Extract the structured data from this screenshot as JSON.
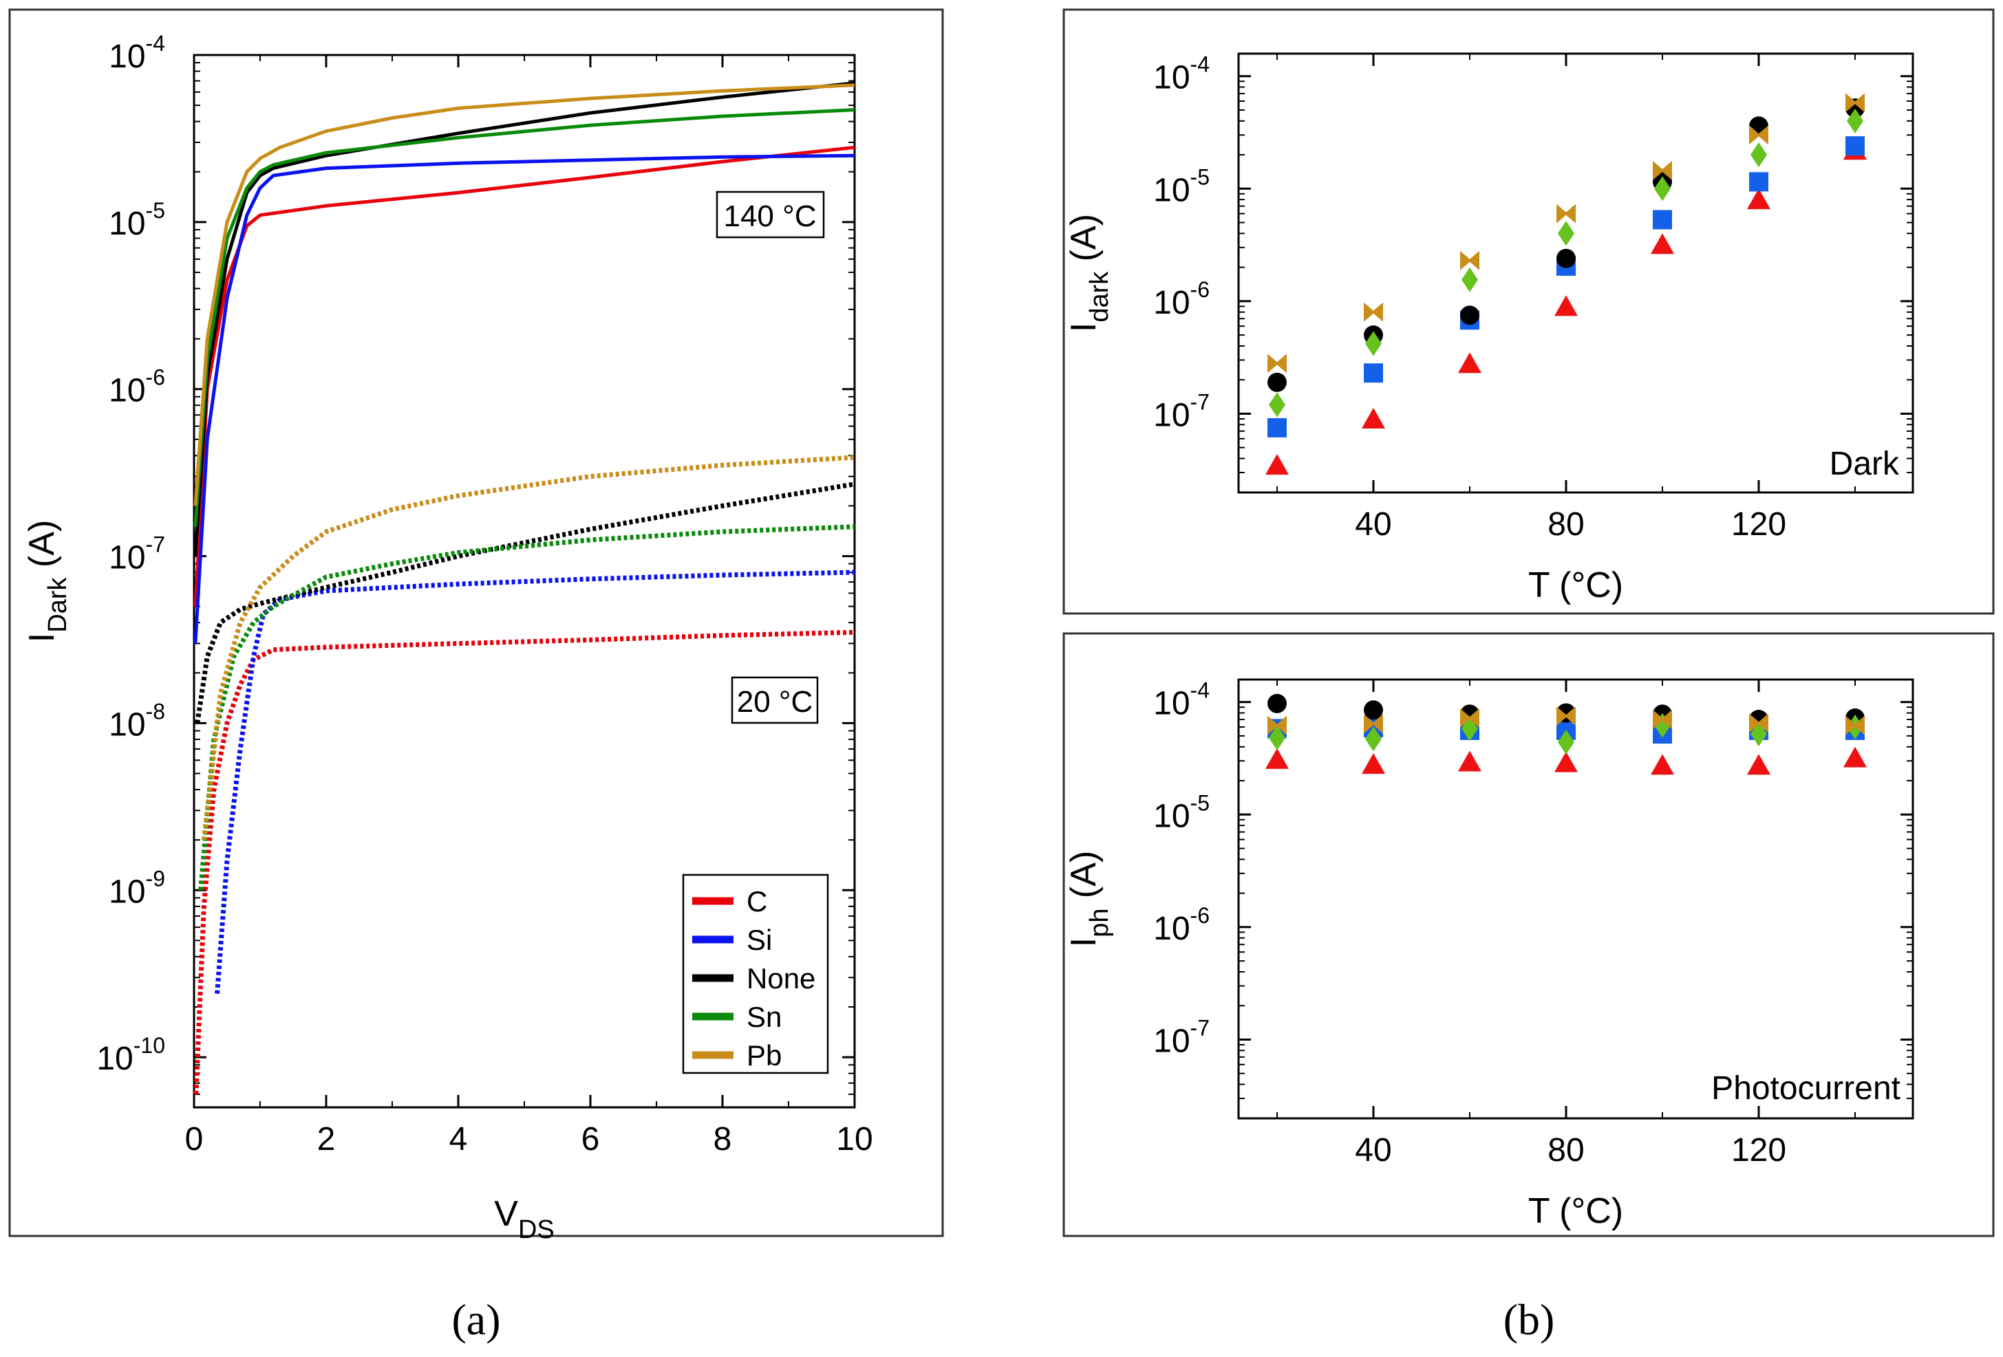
{
  "colors": {
    "C": "#e8000b",
    "Si": "#0a12f0",
    "None": "#000000",
    "Sn": "#0a8a0a",
    "Pb": "#c98d1a",
    "mC": "#ee1111",
    "mSi": "#1560e8",
    "mNone": "#000000",
    "mSn": "#66c21c",
    "mPb": "#c98d1a"
  },
  "captions": {
    "a": "(a)",
    "b": "(b)"
  },
  "chart_data": [
    {
      "type": "line",
      "panel": "a",
      "xlabel_main": "V",
      "xlabel_sub": "DS",
      "ylabel_main": "I",
      "ylabel_sub": "Dark",
      "ylabel_unit": " (A)",
      "xlim": [
        0,
        10
      ],
      "ylim_log10": [
        -10.3,
        -4
      ],
      "xticks": [
        "0",
        "2",
        "4",
        "6",
        "8",
        "10"
      ],
      "yticks": [
        {
          "exp": -4,
          "base": "10",
          "sup": "-4"
        },
        {
          "exp": -5,
          "base": "10",
          "sup": "-5"
        },
        {
          "exp": -6,
          "base": "10",
          "sup": "-6"
        },
        {
          "exp": -7,
          "base": "10",
          "sup": "-7"
        },
        {
          "exp": -8,
          "base": "10",
          "sup": "-8"
        },
        {
          "exp": -9,
          "base": "10",
          "sup": "-9"
        },
        {
          "exp": -10,
          "base": "10",
          "sup": "-10"
        }
      ],
      "annotations": {
        "hot": "140 °C",
        "cold": "20 °C"
      },
      "legend": [
        "C",
        "Si",
        "None",
        "Sn",
        "Pb"
      ],
      "legend_position": "bottom-right",
      "series": [
        {
          "name": "C",
          "temp": "140 °C",
          "style": "solid",
          "x": [
            0.02,
            0.2,
            0.5,
            0.8,
            1.0,
            2,
            4,
            6,
            8,
            10
          ],
          "y": [
            5e-08,
            1e-06,
            4.5e-06,
            9.5e-06,
            1.1e-05,
            1.25e-05,
            1.5e-05,
            1.85e-05,
            2.3e-05,
            2.8e-05
          ]
        },
        {
          "name": "Si",
          "temp": "140 °C",
          "style": "solid",
          "x": [
            0.02,
            0.2,
            0.5,
            0.8,
            1.0,
            1.2,
            2,
            4,
            6,
            8,
            10
          ],
          "y": [
            3e-08,
            5e-07,
            3.5e-06,
            1.1e-05,
            1.6e-05,
            1.9e-05,
            2.1e-05,
            2.25e-05,
            2.35e-05,
            2.45e-05,
            2.5e-05
          ]
        },
        {
          "name": "None",
          "temp": "140 °C",
          "style": "solid",
          "x": [
            0.02,
            0.2,
            0.5,
            0.8,
            1.0,
            1.2,
            2,
            4,
            6,
            8,
            10
          ],
          "y": [
            1e-07,
            1.2e-06,
            6e-06,
            1.5e-05,
            1.9e-05,
            2.1e-05,
            2.5e-05,
            3.4e-05,
            4.5e-05,
            5.6e-05,
            6.8e-05
          ]
        },
        {
          "name": "Sn",
          "temp": "140 °C",
          "style": "solid",
          "x": [
            0.02,
            0.2,
            0.5,
            0.8,
            1.0,
            1.2,
            2,
            4,
            6,
            8,
            10
          ],
          "y": [
            1.5e-07,
            1.5e-06,
            8e-06,
            1.6e-05,
            2e-05,
            2.2e-05,
            2.6e-05,
            3.2e-05,
            3.8e-05,
            4.3e-05,
            4.7e-05
          ]
        },
        {
          "name": "Pb",
          "temp": "140 °C",
          "style": "solid",
          "x": [
            0.02,
            0.2,
            0.5,
            0.8,
            1.0,
            1.3,
            2,
            3,
            4,
            6,
            8,
            10
          ],
          "y": [
            2e-07,
            2e-06,
            1e-05,
            2e-05,
            2.4e-05,
            2.8e-05,
            3.5e-05,
            4.2e-05,
            4.8e-05,
            5.5e-05,
            6.1e-05,
            6.6e-05
          ]
        },
        {
          "name": "C",
          "temp": "20 °C",
          "style": "dotted",
          "x": [
            0.03,
            0.15,
            0.3,
            0.5,
            0.7,
            0.9,
            1.2,
            2,
            4,
            6,
            8,
            10
          ],
          "y": [
            6e-11,
            8e-10,
            4e-09,
            1e-08,
            1.7e-08,
            2.4e-08,
            2.75e-08,
            2.85e-08,
            3e-08,
            3.15e-08,
            3.35e-08,
            3.5e-08
          ]
        },
        {
          "name": "Si",
          "temp": "20 °C",
          "style": "dotted",
          "x": [
            0.35,
            0.5,
            0.7,
            0.9,
            1.05,
            1.3,
            2,
            4,
            6,
            8,
            10
          ],
          "y": [
            2.4e-10,
            1.5e-09,
            7e-09,
            2.5e-08,
            4.5e-08,
            5.5e-08,
            6.2e-08,
            6.8e-08,
            7.3e-08,
            7.7e-08,
            8e-08
          ]
        },
        {
          "name": "None",
          "temp": "20 °C",
          "style": "dotted",
          "x": [
            0.05,
            0.2,
            0.4,
            0.7,
            1,
            2,
            3,
            4,
            6,
            8,
            10
          ],
          "y": [
            1e-08,
            2.5e-08,
            4e-08,
            4.8e-08,
            5.2e-08,
            6.5e-08,
            8e-08,
            1e-07,
            1.45e-07,
            2e-07,
            2.7e-07
          ]
        },
        {
          "name": "Sn",
          "temp": "20 °C",
          "style": "dotted",
          "x": [
            0.1,
            0.3,
            0.6,
            0.9,
            1.2,
            2,
            3,
            4,
            6,
            8,
            10
          ],
          "y": [
            1e-09,
            8e-09,
            2.5e-08,
            4e-08,
            5e-08,
            7.5e-08,
            9e-08,
            1.05e-07,
            1.25e-07,
            1.4e-07,
            1.5e-07
          ]
        },
        {
          "name": "Pb",
          "temp": "20 °C",
          "style": "dotted",
          "x": [
            0.15,
            0.4,
            0.7,
            1.0,
            1.5,
            2,
            3,
            4,
            6,
            8,
            10
          ],
          "y": [
            2e-09,
            1.5e-08,
            4e-08,
            6.5e-08,
            1e-07,
            1.4e-07,
            1.9e-07,
            2.3e-07,
            3e-07,
            3.5e-07,
            3.9e-07
          ]
        }
      ]
    },
    {
      "type": "scatter",
      "panel": "b-top",
      "label": "Dark",
      "xlabel": "T (°C)",
      "ylabel_main": "I",
      "ylabel_sub": "dark",
      "ylabel_unit": " (A)",
      "xlim": [
        12,
        152
      ],
      "ylim_log10": [
        -7.7,
        -3.8
      ],
      "xticks": [
        "40",
        "80",
        "120"
      ],
      "xtick_values": [
        40,
        80,
        120
      ],
      "yticks": [
        {
          "exp": -4,
          "base": "10",
          "sup": "-4"
        },
        {
          "exp": -5,
          "base": "10",
          "sup": "-5"
        },
        {
          "exp": -6,
          "base": "10",
          "sup": "-6"
        },
        {
          "exp": -7,
          "base": "10",
          "sup": "-7"
        }
      ],
      "x": [
        20,
        40,
        60,
        80,
        100,
        120,
        140
      ],
      "series": [
        {
          "name": "C",
          "marker": "triangle",
          "values": [
            3.5e-08,
            9e-08,
            2.8e-07,
            9e-07,
            3.2e-06,
            8e-06,
            2.2e-05
          ]
        },
        {
          "name": "Si",
          "marker": "square",
          "values": [
            7.5e-08,
            2.3e-07,
            6.8e-07,
            2.05e-06,
            5.3e-06,
            1.15e-05,
            2.4e-05
          ]
        },
        {
          "name": "None",
          "marker": "circle",
          "values": [
            1.9e-07,
            5e-07,
            7.5e-07,
            2.4e-06,
            1.15e-05,
            3.6e-05,
            5.2e-05
          ]
        },
        {
          "name": "Sn",
          "marker": "diamond",
          "values": [
            1.2e-07,
            4.2e-07,
            1.55e-06,
            4e-06,
            1e-05,
            2e-05,
            4e-05
          ]
        },
        {
          "name": "Pb",
          "marker": "bowtie",
          "values": [
            2.8e-07,
            8e-07,
            2.3e-06,
            6e-06,
            1.45e-05,
            3e-05,
            5.8e-05
          ]
        }
      ]
    },
    {
      "type": "scatter",
      "panel": "b-bottom",
      "label": "Photocurrent",
      "xlabel": "T (°C)",
      "ylabel_main": "I",
      "ylabel_sub": "ph",
      "ylabel_unit": " (A)",
      "xlim": [
        12,
        152
      ],
      "ylim_log10": [
        -7.7,
        -3.8
      ],
      "xticks": [
        "40",
        "80",
        "120"
      ],
      "xtick_values": [
        40,
        80,
        120
      ],
      "yticks": [
        {
          "exp": -4,
          "base": "10",
          "sup": "-4"
        },
        {
          "exp": -5,
          "base": "10",
          "sup": "-5"
        },
        {
          "exp": -6,
          "base": "10",
          "sup": "-6"
        },
        {
          "exp": -7,
          "base": "10",
          "sup": "-7"
        }
      ],
      "x": [
        20,
        40,
        60,
        80,
        100,
        120,
        140
      ],
      "series": [
        {
          "name": "C",
          "marker": "triangle",
          "values": [
            3.1e-05,
            2.8e-05,
            2.95e-05,
            2.9e-05,
            2.75e-05,
            2.75e-05,
            3.2e-05
          ]
        },
        {
          "name": "Si",
          "marker": "square",
          "values": [
            5.8e-05,
            5.9e-05,
            5.6e-05,
            5.6e-05,
            5.2e-05,
            5.6e-05,
            5.6e-05
          ]
        },
        {
          "name": "None",
          "marker": "circle",
          "values": [
            9.7e-05,
            8.5e-05,
            7.8e-05,
            8e-05,
            7.8e-05,
            7e-05,
            7.2e-05
          ]
        },
        {
          "name": "Sn",
          "marker": "diamond",
          "values": [
            4.8e-05,
            4.7e-05,
            5.8e-05,
            4.4e-05,
            6.2e-05,
            5.2e-05,
            6e-05
          ]
        },
        {
          "name": "Pb",
          "marker": "bowtie",
          "values": [
            6.2e-05,
            6.4e-05,
            7.2e-05,
            7.5e-05,
            7e-05,
            6.5e-05,
            6.2e-05
          ]
        }
      ]
    }
  ]
}
